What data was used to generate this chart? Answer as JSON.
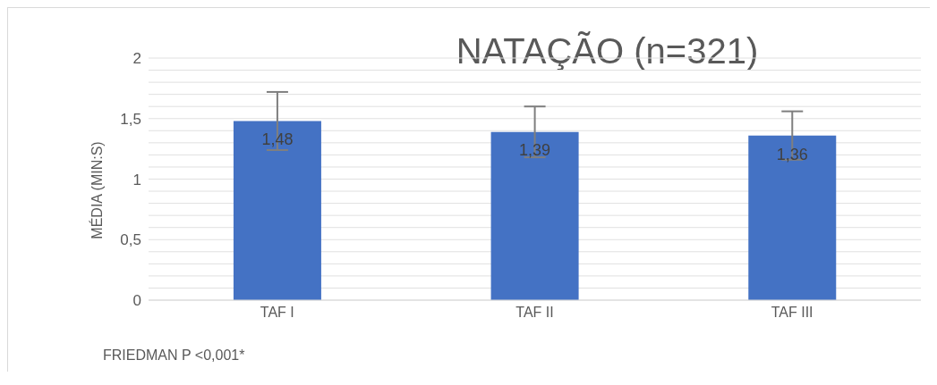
{
  "chart_data": {
    "type": "bar",
    "title": "NATAÇÃO (n=321)",
    "ylabel": "MÉDIA (MIN:S)",
    "categories": [
      "TAF I",
      "TAF II",
      "TAF III"
    ],
    "values": [
      1.48,
      1.39,
      1.36
    ],
    "color": "#4472c4",
    "errors": [
      0.24,
      0.21,
      0.2
    ],
    "value_labels": [
      "1,48",
      "1,39",
      "1,36"
    ],
    "ylim": [
      0,
      2
    ],
    "yticks": [
      0,
      {
        "value": 0.1,
        "label": null
      },
      {
        "value": 0.2,
        "label": null
      },
      {
        "value": 0.3,
        "label": null
      },
      {
        "value": 0.4,
        "label": null
      },
      {
        "value": 0.5,
        "label": "0,5"
      },
      {
        "value": 0.6,
        "label": null
      },
      {
        "value": 0.7,
        "label": null
      },
      {
        "value": 0.8,
        "label": null
      },
      {
        "value": 0.9,
        "label": null
      },
      1,
      {
        "value": 1.1,
        "label": null
      },
      {
        "value": 1.2,
        "label": null
      },
      {
        "value": 1.3,
        "label": null
      },
      {
        "value": 1.4,
        "label": null
      },
      {
        "value": 1.5,
        "label": "1,5"
      },
      {
        "value": 1.6,
        "label": null
      },
      {
        "value": 1.7,
        "label": null
      },
      {
        "value": 1.8,
        "label": null
      },
      {
        "value": 1.9,
        "label": null
      },
      2
    ],
    "grid": true,
    "annotations": [
      "FRIEDMAN P <0,001*"
    ]
  }
}
